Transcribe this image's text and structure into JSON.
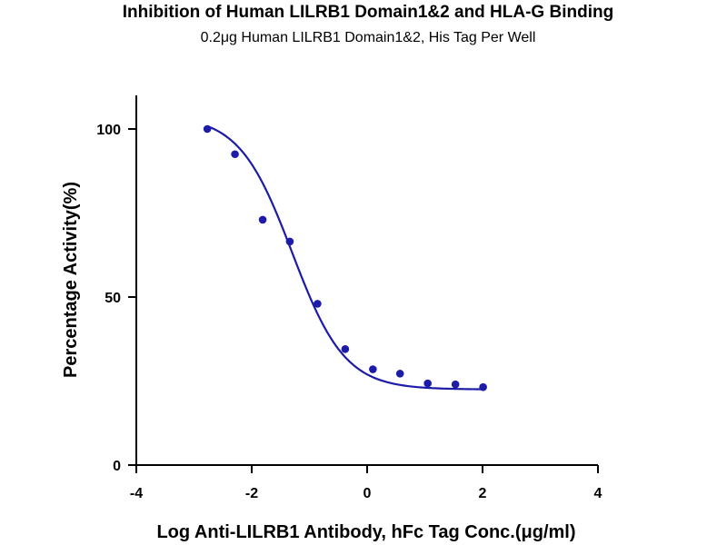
{
  "chart_data": {
    "type": "scatter",
    "title": "Inhibition of Human LILRB1 Domain1&2 and HLA-G Binding",
    "subtitle": "0.2μg Human LILRB1 Domain1&2, His Tag Per Well",
    "xlabel": "Log Anti-LILRB1 Antibody, hFc Tag Conc.(μg/ml)",
    "ylabel": "Percentage Activity(%)",
    "xlim": [
      -4,
      4
    ],
    "ylim": [
      0,
      110
    ],
    "x_ticks": [
      -4,
      -2,
      0,
      2,
      4
    ],
    "x_tick_labels": [
      "-4",
      "-2",
      "0",
      "2",
      "4"
    ],
    "y_ticks": [
      0,
      50,
      100
    ],
    "y_tick_labels": [
      "0",
      "50",
      "100"
    ],
    "grid": false,
    "legend": "none",
    "color": "#1c1ca8",
    "series": [
      {
        "x": [
          -2.77,
          -2.29,
          -1.81,
          -1.34,
          -0.86,
          -0.38,
          0.1,
          0.57,
          1.05,
          1.53,
          2.01
        ],
        "y": [
          100.0,
          92.5,
          73.0,
          66.5,
          48.0,
          34.5,
          28.5,
          27.2,
          24.3,
          24.0,
          23.2
        ]
      }
    ],
    "fit_curve": {
      "model": "four-parameter logistic",
      "top": 104,
      "bottom": 22.5,
      "log_ic50": -1.3,
      "hill_slope": -0.95,
      "x_range": [
        -2.77,
        2.01
      ]
    }
  }
}
